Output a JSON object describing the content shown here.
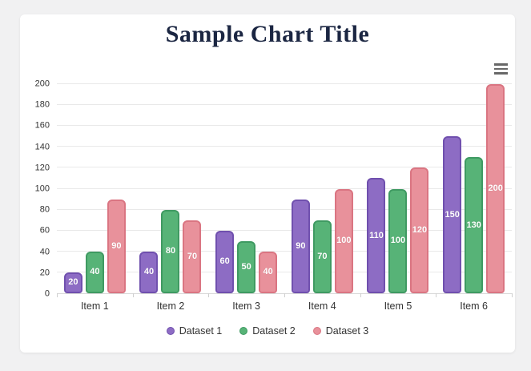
{
  "page": {
    "background": "#f1f1f2",
    "card_background": "#ffffff"
  },
  "header": {
    "menu_icon": "hamburger-menu-icon",
    "menu_color": "#686868"
  },
  "colors": {
    "title": "#1b2642",
    "axis_text": "#333333",
    "gridline": "#e9e9e9",
    "axis_line": "#d8d8d8",
    "bar_label_text": "#ffffff"
  },
  "chart_data": {
    "type": "bar",
    "title": "Sample Chart Title",
    "categories": [
      "Item 1",
      "Item 2",
      "Item 3",
      "Item 4",
      "Item 5",
      "Item 6"
    ],
    "series": [
      {
        "name": "Dataset 1",
        "fill": "#8d6cc4",
        "border": "#7050ae",
        "values": [
          20,
          40,
          60,
          90,
          110,
          150
        ]
      },
      {
        "name": "Dataset 2",
        "fill": "#57b377",
        "border": "#3f9a62",
        "values": [
          40,
          80,
          50,
          70,
          100,
          130
        ]
      },
      {
        "name": "Dataset 3",
        "fill": "#e8919b",
        "border": "#da7582",
        "values": [
          90,
          70,
          40,
          100,
          120,
          200
        ]
      }
    ],
    "ylim": [
      0,
      200
    ],
    "yticks": [
      0,
      20,
      40,
      60,
      80,
      100,
      120,
      140,
      160,
      180,
      200
    ],
    "grid": true,
    "data_labels": "values shown in white, centered inside each bar",
    "legend_position": "bottom"
  }
}
